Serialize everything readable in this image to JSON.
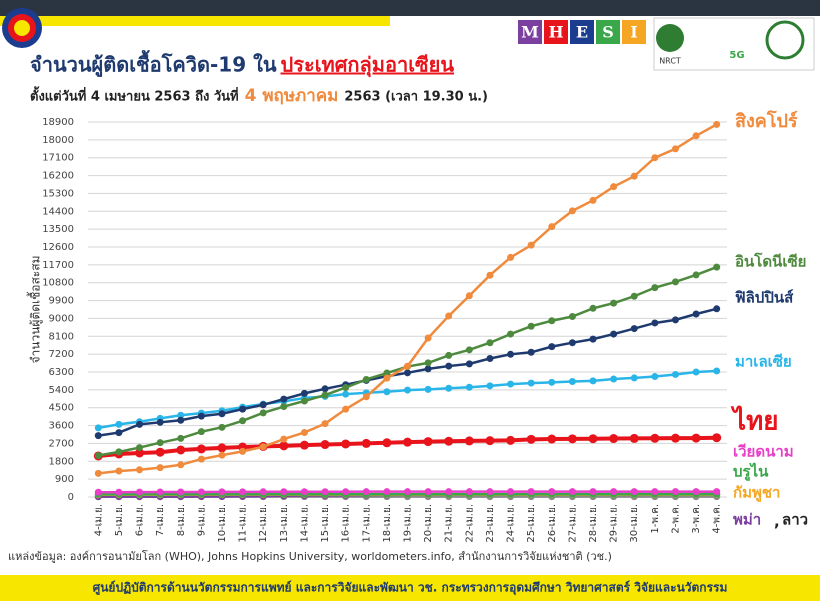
{
  "header": {
    "title": "จำนวนผู้ติดเชื้อโควิด-19 ใน",
    "title_highlight": "ประเทศกลุ่มอาเซียน",
    "subtitle_start": "ตั้งแต่วันที่ 4 เมษายน 2563 ถึง วันที่",
    "subtitle_highlight": "4 พฤษภาคม",
    "subtitle_end": "2563 (เวลา 19.30 น.)",
    "logos": [
      "M",
      "H",
      "E",
      "S",
      "I",
      "NRCT",
      "5G"
    ]
  },
  "chart_data": {
    "type": "line",
    "y_label": "จำนวนผู้ติดเชื้อสะสม",
    "categories": [
      "4-เม.ย.",
      "5-เม.ย.",
      "6-เม.ย.",
      "7-เม.ย.",
      "8-เม.ย.",
      "9-เม.ย.",
      "10-เม.ย.",
      "11-เม.ย.",
      "12-เม.ย.",
      "13-เม.ย.",
      "14-เม.ย.",
      "15-เม.ย.",
      "16-เม.ย.",
      "17-เม.ย.",
      "18-เม.ย.",
      "19-เม.ย.",
      "20-เม.ย.",
      "21-เม.ย.",
      "22-เม.ย.",
      "23-เม.ย.",
      "24-เม.ย.",
      "25-เม.ย.",
      "26-เม.ย.",
      "27-เม.ย.",
      "28-เม.ย.",
      "29-เม.ย.",
      "30-เม.ย.",
      "1-พ.ค.",
      "2-พ.ค.",
      "3-พ.ค.",
      "4-พ.ค."
    ],
    "ylim": [
      0,
      18900
    ],
    "yticks": [
      0,
      900,
      1800,
      2700,
      3600,
      4500,
      5400,
      6300,
      7200,
      8100,
      9000,
      9900,
      10800,
      11700,
      12600,
      13500,
      14400,
      15300,
      16200,
      17100,
      18000,
      18900
    ],
    "grid": true,
    "label_joiner": ",",
    "series": [
      {
        "name": "สิงคโปร์",
        "color": "#f08a3c",
        "values": [
          1189,
          1309,
          1375,
          1481,
          1623,
          1910,
          2108,
          2299,
          2532,
          2918,
          3252,
          3699,
          4427,
          5050,
          5992,
          6588,
          8014,
          9125,
          10141,
          11178,
          12075,
          12693,
          13624,
          14423,
          14951,
          15641,
          16169,
          17101,
          17548,
          18205,
          18778
        ]
      },
      {
        "name": "อินโดนีเซีย",
        "color": "#4e8a3e",
        "values": [
          2092,
          2273,
          2491,
          2738,
          2956,
          3293,
          3512,
          3842,
          4241,
          4557,
          4839,
          5136,
          5516,
          5923,
          6248,
          6575,
          6760,
          7135,
          7418,
          7775,
          8211,
          8607,
          8882,
          9096,
          9511,
          9771,
          10118,
          10551,
          10843,
          11192,
          11587
        ]
      },
      {
        "name": "ฟิลิปปินส์",
        "color": "#1f3a6e",
        "values": [
          3094,
          3246,
          3660,
          3764,
          3870,
          4076,
          4195,
          4428,
          4648,
          4932,
          5223,
          5453,
          5660,
          5878,
          6087,
          6259,
          6459,
          6599,
          6710,
          6981,
          7192,
          7294,
          7579,
          7777,
          7958,
          8212,
          8488,
          8772,
          8928,
          9223,
          9485
        ]
      },
      {
        "name": "มาเลเซีย",
        "color": "#29b5e8",
        "values": [
          3483,
          3662,
          3793,
          3963,
          4119,
          4228,
          4346,
          4530,
          4683,
          4817,
          4987,
          5072,
          5182,
          5251,
          5305,
          5389,
          5425,
          5482,
          5532,
          5603,
          5691,
          5742,
          5780,
          5820,
          5851,
          5945,
          6002,
          6071,
          6176,
          6298,
          6353
        ]
      },
      {
        "name": "ไทย",
        "color": "#e8141c",
        "values": [
          2067,
          2169,
          2220,
          2258,
          2369,
          2423,
          2473,
          2518,
          2551,
          2579,
          2613,
          2643,
          2672,
          2700,
          2733,
          2765,
          2792,
          2811,
          2826,
          2839,
          2854,
          2907,
          2922,
          2931,
          2938,
          2947,
          2954,
          2960,
          2966,
          2969,
          2987
        ]
      },
      {
        "name": "เวียดนาม",
        "color": "#e83fc8",
        "values": [
          240,
          241,
          245,
          249,
          251,
          255,
          257,
          258,
          262,
          265,
          265,
          266,
          267,
          268,
          268,
          268,
          268,
          268,
          268,
          268,
          268,
          270,
          270,
          270,
          270,
          270,
          270,
          270,
          270,
          271,
          271
        ]
      },
      {
        "name": "บรูไน",
        "color": "#3aa84a",
        "values": [
          135,
          135,
          135,
          136,
          136,
          136,
          136,
          136,
          136,
          136,
          136,
          136,
          136,
          136,
          136,
          138,
          138,
          138,
          138,
          138,
          138,
          138,
          138,
          138,
          138,
          138,
          138,
          138,
          138,
          138,
          138
        ]
      },
      {
        "name": "กัมพูชา",
        "color": "#f5a623",
        "values": [
          114,
          114,
          114,
          115,
          117,
          117,
          119,
          119,
          120,
          122,
          122,
          122,
          122,
          122,
          122,
          122,
          122,
          122,
          122,
          122,
          122,
          122,
          122,
          122,
          122,
          122,
          122,
          122,
          122,
          122,
          122
        ]
      },
      {
        "name": "พม่า",
        "color": "#7b3fa0",
        "values": [
          20,
          21,
          22,
          22,
          22,
          27,
          28,
          39,
          41,
          62,
          74,
          85,
          88,
          98,
          107,
          111,
          119,
          121,
          127,
          132,
          139,
          144,
          144,
          146,
          146,
          150,
          150,
          151,
          151,
          155,
          161
        ]
      },
      {
        "name": "ลาว",
        "color": "#8a8a8a",
        "values": [
          10,
          10,
          11,
          12,
          15,
          16,
          16,
          16,
          19,
          19,
          19,
          19,
          19,
          19,
          19,
          19,
          19,
          19,
          19,
          19,
          19,
          19,
          19,
          19,
          19,
          19,
          19,
          19,
          19,
          19,
          19
        ]
      }
    ]
  },
  "source": "แหล่งข้อมูล: องค์การอนามัยโลก (WHO), Johns Hopkins University, worldometers.info, สำนักงานการวิจัยแห่งชาติ (วช.)",
  "footer": "ศูนย์ปฏิบัติการด้านนวัตกรรมการแพทย์ และการวิจัยและพัฒนา วช.   กระทรวงการอุดมศึกษา วิทยาศาสตร์ วิจัยและนวัตกรรม"
}
